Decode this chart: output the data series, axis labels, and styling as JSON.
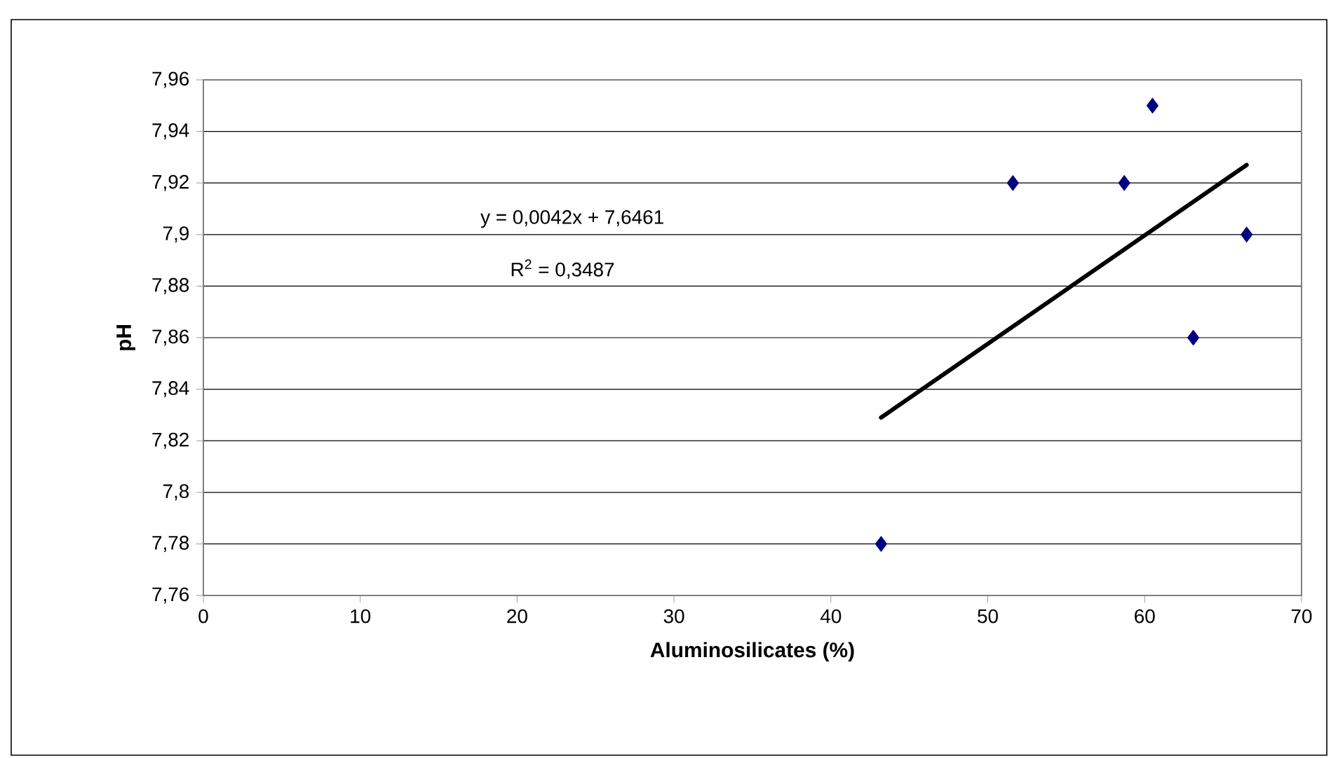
{
  "chart_data": {
    "type": "scatter",
    "xlabel": "Aluminosilicates  (%)",
    "ylabel": "pH",
    "series": [
      {
        "color": "#000080",
        "marker": "diamond",
        "x": [
          43.2,
          51.6,
          58.7,
          60.5,
          63.1,
          66.5
        ],
        "values": [
          7.78,
          7.92,
          7.92,
          7.95,
          7.86,
          7.9
        ]
      },
      {
        "type": "line",
        "color": "#000000",
        "marker": "none",
        "x": [
          43.2,
          66.5
        ],
        "values": [
          7.829,
          7.927
        ]
      }
    ],
    "annotations": [
      "y = 0,0042x + 7,6461",
      "R$^{2}$ = 0,3487"
    ],
    "xlim": [
      0,
      70
    ],
    "xticks": [
      0,
      10,
      20,
      30,
      40,
      50,
      60,
      70
    ],
    "ylim": [
      7.76,
      7.96
    ],
    "yticks": [
      {
        "value": 7.76,
        "label": "7,76"
      },
      {
        "value": 7.78,
        "label": "7,78"
      },
      {
        "value": 7.8,
        "label": "7,8"
      },
      {
        "value": 7.82,
        "label": "7,82"
      },
      {
        "value": 7.84,
        "label": "7,84"
      },
      {
        "value": 7.86,
        "label": "7,86"
      },
      {
        "value": 7.88,
        "label": "7,88"
      },
      {
        "value": 7.9,
        "label": "7,9"
      },
      {
        "value": 7.92,
        "label": "7,92"
      },
      {
        "value": 7.94,
        "label": "7,94"
      },
      {
        "value": 7.96,
        "label": "7,96"
      }
    ],
    "grid": "y"
  }
}
